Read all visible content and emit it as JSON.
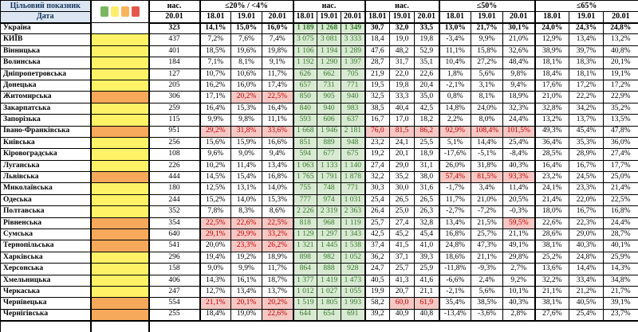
{
  "header": {
    "target_label": "Цільовий показник",
    "date_label": "Дата",
    "legend_colors": [
      "#7ab661",
      "#fdee6c",
      "#f7b45c",
      "#e4574f"
    ],
    "legend_names": [
      "green-status",
      "yellow-status",
      "orange-status",
      "red-status"
    ],
    "groups": [
      {
        "label": "нас.",
        "dates": [
          "20.01"
        ]
      },
      {
        "label": "≤20% / <4%",
        "dates": [
          "18.01",
          "19.01",
          "20.01"
        ]
      },
      {
        "label": "нас.",
        "dates": [
          "18.01",
          "19.01",
          "20.01"
        ]
      },
      {
        "label": "нас.",
        "dates": [
          "18.01",
          "19.01",
          "20.01"
        ]
      },
      {
        "label": "≤50%",
        "dates": [
          "18.01",
          "19.01",
          "20.01"
        ]
      },
      {
        "label": "≤65%",
        "dates": [
          "18.01",
          "19.01",
          "20.01"
        ]
      }
    ]
  },
  "colors": {
    "header_blue": "#dce6f2",
    "header_text": "#17365d",
    "green_cell_bg": "#d9ead3",
    "green_cell_text": "#357a2b",
    "red_cell_bg": "#f6c7c3",
    "red_cell_text": "#c00000",
    "indicator_yellow": "#fff266",
    "indicator_orange": "#f6a95b"
  },
  "rows": [
    {
      "name": "Україна",
      "bold": true,
      "ind": "n",
      "nas": "323",
      "p20": [
        "14,1%",
        "15,0%",
        "16,0%"
      ],
      "p20r": [
        0,
        0,
        0
      ],
      "n1": [
        "1 189",
        "1 268",
        "1 349"
      ],
      "n2": [
        "30,7",
        "32,0",
        "33,5"
      ],
      "n2r": [
        0,
        0,
        0
      ],
      "p50": [
        "13,0%",
        "21,7%",
        "30,1%"
      ],
      "p50r": [
        0,
        0,
        0
      ],
      "p65": [
        "24,0%",
        "24,3%",
        "24,8%"
      ]
    },
    {
      "name": "КИЇВ",
      "bold": false,
      "ind": "y",
      "nas": "437",
      "p20": [
        "7,2%",
        "7,6%",
        "7,4%"
      ],
      "p20r": [
        0,
        0,
        0
      ],
      "n1": [
        "3 075",
        "3 081",
        "3 333"
      ],
      "n2": [
        "18,4",
        "19,0",
        "19,8"
      ],
      "n2r": [
        0,
        0,
        0
      ],
      "p50": [
        "-3,4%",
        "9,9%",
        "21,0%"
      ],
      "p50r": [
        0,
        0,
        0
      ],
      "p65": [
        "12,9%",
        "13,4%",
        "13,2%"
      ]
    },
    {
      "name": "Вінницька",
      "bold": false,
      "ind": "y",
      "nas": "401",
      "p20": [
        "18,5%",
        "19,6%",
        "19,8%"
      ],
      "p20r": [
        0,
        0,
        0
      ],
      "n1": [
        "1 106",
        "1 194",
        "1 289"
      ],
      "n2": [
        "47,6",
        "48,2",
        "52,9"
      ],
      "n2r": [
        0,
        0,
        0
      ],
      "p50": [
        "11,1%",
        "15,8%",
        "32,6%"
      ],
      "p50r": [
        0,
        0,
        0
      ],
      "p65": [
        "38,9%",
        "39,7%",
        "40,8%"
      ]
    },
    {
      "name": "Волинська",
      "bold": false,
      "ind": "y",
      "nas": "184",
      "p20": [
        "7,1%",
        "8,1%",
        "9,1%"
      ],
      "p20r": [
        0,
        0,
        0
      ],
      "n1": [
        "1 192",
        "1 290",
        "1 397"
      ],
      "n2": [
        "28,7",
        "31,7",
        "35,1"
      ],
      "n2r": [
        0,
        0,
        0
      ],
      "p50": [
        "10,4%",
        "27,2%",
        "48,4%"
      ],
      "p50r": [
        0,
        0,
        0
      ],
      "p65": [
        "18,1%",
        "18,3%",
        "20,1%"
      ]
    },
    {
      "name": "Дніпропетровська",
      "bold": false,
      "ind": "y",
      "nas": "127",
      "p20": [
        "10,7%",
        "10,6%",
        "11,7%"
      ],
      "p20r": [
        0,
        0,
        0
      ],
      "n1": [
        "626",
        "662",
        "705"
      ],
      "n2": [
        "21,9",
        "22,0",
        "22,6"
      ],
      "n2r": [
        0,
        0,
        0
      ],
      "p50": [
        "1,8%",
        "5,6%",
        "9,8%"
      ],
      "p50r": [
        0,
        0,
        0
      ],
      "p65": [
        "18,4%",
        "18,1%",
        "19,1%"
      ]
    },
    {
      "name": "Донецька",
      "bold": false,
      "ind": "y",
      "nas": "205",
      "p20": [
        "16,2%",
        "16,0%",
        "17,4%"
      ],
      "p20r": [
        0,
        0,
        0
      ],
      "n1": [
        "657",
        "731",
        "771"
      ],
      "n2": [
        "19,5",
        "19,8",
        "20,4"
      ],
      "n2r": [
        0,
        0,
        0
      ],
      "p50": [
        "-2,1%",
        "3,1%",
        "9,4%"
      ],
      "p50r": [
        0,
        0,
        0
      ],
      "p65": [
        "17,6%",
        "17,2%",
        "17,2%"
      ]
    },
    {
      "name": "Житомирська",
      "bold": false,
      "ind": "o",
      "nas": "306",
      "p20": [
        "17,1%",
        "20,2%",
        "22,5%"
      ],
      "p20r": [
        0,
        1,
        1
      ],
      "n1": [
        "850",
        "905",
        "940"
      ],
      "n2": [
        "32,5",
        "33,3",
        "35,0"
      ],
      "n2r": [
        0,
        0,
        0
      ],
      "p50": [
        "0,8%",
        "8,1%",
        "18,9%"
      ],
      "p50r": [
        0,
        0,
        0
      ],
      "p65": [
        "21,0%",
        "22,2%",
        "22,9%"
      ]
    },
    {
      "name": "Закарпатська",
      "bold": false,
      "ind": "y",
      "nas": "259",
      "p20": [
        "16,4%",
        "15,3%",
        "16,4%"
      ],
      "p20r": [
        0,
        0,
        0
      ],
      "n1": [
        "840",
        "940",
        "983"
      ],
      "n2": [
        "38,5",
        "40,4",
        "42,5"
      ],
      "n2r": [
        0,
        0,
        0
      ],
      "p50": [
        "14,8%",
        "24,0%",
        "32,3%"
      ],
      "p50r": [
        0,
        0,
        0
      ],
      "p65": [
        "32,8%",
        "34,2%",
        "35,2%"
      ]
    },
    {
      "name": "Запорізька",
      "bold": false,
      "ind": "y",
      "nas": "115",
      "p20": [
        "9,9%",
        "9,8%",
        "11,1%"
      ],
      "p20r": [
        0,
        0,
        0
      ],
      "n1": [
        "593",
        "606",
        "637"
      ],
      "n2": [
        "16,7",
        "17,0",
        "18,2"
      ],
      "n2r": [
        0,
        0,
        0
      ],
      "p50": [
        "2,2%",
        "8,0%",
        "24,4%"
      ],
      "p50r": [
        0,
        0,
        0
      ],
      "p65": [
        "13,2%",
        "13,7%",
        "13,5%"
      ]
    },
    {
      "name": "Івано-Франківська",
      "bold": false,
      "ind": "o",
      "nas": "951",
      "p20": [
        "29,2%",
        "31,8%",
        "33,6%"
      ],
      "p20r": [
        1,
        1,
        1
      ],
      "n1": [
        "1 668",
        "1 946",
        "2 181"
      ],
      "n2": [
        "76,0",
        "81,5",
        "86,2"
      ],
      "n2r": [
        1,
        1,
        1
      ],
      "p50": [
        "92,9%",
        "108,4%",
        "101,5%"
      ],
      "p50r": [
        1,
        1,
        1
      ],
      "p65": [
        "49,3%",
        "45,4%",
        "47,8%"
      ]
    },
    {
      "name": "Київська",
      "bold": false,
      "ind": "y",
      "nas": "256",
      "p20": [
        "15,6%",
        "15,9%",
        "16,6%"
      ],
      "p20r": [
        0,
        0,
        0
      ],
      "n1": [
        "851",
        "889",
        "948"
      ],
      "n2": [
        "23,2",
        "24,1",
        "25,5"
      ],
      "n2r": [
        0,
        0,
        0
      ],
      "p50": [
        "5,1%",
        "14,4%",
        "25,4%"
      ],
      "p50r": [
        0,
        0,
        0
      ],
      "p65": [
        "36,4%",
        "35,3%",
        "36,0%"
      ]
    },
    {
      "name": "Кіровоградська",
      "bold": false,
      "ind": "y",
      "nas": "108",
      "p20": [
        "9,6%",
        "9,0%",
        "9,4%"
      ],
      "p20r": [
        0,
        0,
        0
      ],
      "n1": [
        "594",
        "677",
        "675"
      ],
      "n2": [
        "19,2",
        "20,1",
        "18,9"
      ],
      "n2r": [
        0,
        0,
        0
      ],
      "p50": [
        "-17,6%",
        "-5,1%",
        "-8,4%"
      ],
      "p50r": [
        0,
        0,
        0
      ],
      "p65": [
        "28,5%",
        "28,9%",
        "27,4%"
      ]
    },
    {
      "name": "Луганська",
      "bold": false,
      "ind": "y",
      "nas": "226",
      "p20": [
        "10,2%",
        "11,4%",
        "13,4%"
      ],
      "p20r": [
        0,
        0,
        0
      ],
      "n1": [
        "1 063",
        "1 133",
        "1 140"
      ],
      "n2": [
        "27,4",
        "29,0",
        "31,1"
      ],
      "n2r": [
        0,
        0,
        0
      ],
      "p50": [
        "26,0%",
        "31,8%",
        "40,3%"
      ],
      "p50r": [
        0,
        0,
        0
      ],
      "p65": [
        "16,4%",
        "16,7%",
        "17,7%"
      ]
    },
    {
      "name": "Львівська",
      "bold": false,
      "ind": "o",
      "nas": "444",
      "p20": [
        "14,5%",
        "15,4%",
        "16,8%"
      ],
      "p20r": [
        0,
        0,
        0
      ],
      "n1": [
        "1 765",
        "1 791",
        "1 878"
      ],
      "n2": [
        "32,2",
        "35,2",
        "38,0"
      ],
      "n2r": [
        0,
        0,
        0
      ],
      "p50": [
        "57,4%",
        "81,5%",
        "93,3%"
      ],
      "p50r": [
        1,
        1,
        1
      ],
      "p65": [
        "23,2%",
        "24,5%",
        "25,0%"
      ]
    },
    {
      "name": "Миколаївська",
      "bold": false,
      "ind": "y",
      "nas": "180",
      "p20": [
        "12,5%",
        "13,1%",
        "14,0%"
      ],
      "p20r": [
        0,
        0,
        0
      ],
      "n1": [
        "755",
        "748",
        "771"
      ],
      "n2": [
        "30,3",
        "30,0",
        "31,6"
      ],
      "n2r": [
        0,
        0,
        0
      ],
      "p50": [
        "-1,7%",
        "3,4%",
        "11,4%"
      ],
      "p50r": [
        0,
        0,
        0
      ],
      "p65": [
        "24,1%",
        "23,3%",
        "21,4%"
      ]
    },
    {
      "name": "Одеська",
      "bold": false,
      "ind": "y",
      "nas": "244",
      "p20": [
        "15,2%",
        "14,0%",
        "15,3%"
      ],
      "p20r": [
        0,
        0,
        0
      ],
      "n1": [
        "777",
        "974",
        "1 031"
      ],
      "n2": [
        "25,4",
        "26,5",
        "26,5"
      ],
      "n2r": [
        0,
        0,
        0
      ],
      "p50": [
        "11,7%",
        "21,0%",
        "20,5%"
      ],
      "p50r": [
        0,
        0,
        0
      ],
      "p65": [
        "21,4%",
        "22,0%",
        "22,5%"
      ]
    },
    {
      "name": "Полтавська",
      "bold": false,
      "ind": "y",
      "nas": "352",
      "p20": [
        "7,8%",
        "8,3%",
        "8,6%"
      ],
      "p20r": [
        0,
        0,
        0
      ],
      "n1": [
        "2 226",
        "2 319",
        "2 363"
      ],
      "n2": [
        "26,4",
        "25,0",
        "26,3"
      ],
      "n2r": [
        0,
        0,
        0
      ],
      "p50": [
        "-2,7%",
        "-7,2%",
        "-0,3%"
      ],
      "p50r": [
        0,
        0,
        0
      ],
      "p65": [
        "18,0%",
        "16,7%",
        "16,8%"
      ]
    },
    {
      "name": "Рівненська",
      "bold": false,
      "ind": "o",
      "nas": "354",
      "p20": [
        "22,5%",
        "22,6%",
        "22,5%"
      ],
      "p20r": [
        1,
        1,
        1
      ],
      "n1": [
        "818",
        "968",
        "1 119"
      ],
      "n2": [
        "25,7",
        "27,4",
        "32,8"
      ],
      "n2r": [
        0,
        0,
        0
      ],
      "p50": [
        "13,4%",
        "21,5%",
        "59,5%"
      ],
      "p50r": [
        0,
        0,
        1
      ],
      "p65": [
        "22,6%",
        "22,3%",
        "24,4%"
      ]
    },
    {
      "name": "Сумська",
      "bold": false,
      "ind": "o",
      "nas": "640",
      "p20": [
        "29,1%",
        "29,9%",
        "33,2%"
      ],
      "p20r": [
        1,
        1,
        1
      ],
      "n1": [
        "1 129",
        "1 297",
        "1 343"
      ],
      "n2": [
        "42,5",
        "45,2",
        "45,4"
      ],
      "n2r": [
        0,
        0,
        0
      ],
      "p50": [
        "16,8%",
        "25,7%",
        "21,1%"
      ],
      "p50r": [
        0,
        0,
        0
      ],
      "p65": [
        "28,6%",
        "29,0%",
        "28,7%"
      ]
    },
    {
      "name": "Тернопільська",
      "bold": false,
      "ind": "o",
      "nas": "541",
      "p20": [
        "20,0%",
        "23,3%",
        "26,2%"
      ],
      "p20r": [
        0,
        1,
        1
      ],
      "n1": [
        "1 321",
        "1 445",
        "1 538"
      ],
      "n2": [
        "37,4",
        "41,5",
        "41,0"
      ],
      "n2r": [
        0,
        0,
        0
      ],
      "p50": [
        "24,8%",
        "47,3%",
        "49,1%"
      ],
      "p50r": [
        0,
        0,
        0
      ],
      "p65": [
        "38,1%",
        "40,3%",
        "40,1%"
      ]
    },
    {
      "name": "Харківська",
      "bold": false,
      "ind": "y",
      "nas": "296",
      "p20": [
        "19,4%",
        "19,2%",
        "18,9%"
      ],
      "p20r": [
        0,
        0,
        0
      ],
      "n1": [
        "898",
        "982",
        "1 052"
      ],
      "n2": [
        "36,2",
        "37,1",
        "39,3"
      ],
      "n2r": [
        0,
        0,
        0
      ],
      "p50": [
        "18,6%",
        "21,1%",
        "29,8%"
      ],
      "p50r": [
        0,
        0,
        0
      ],
      "p65": [
        "25,2%",
        "24,8%",
        "25,9%"
      ]
    },
    {
      "name": "Херсонська",
      "bold": false,
      "ind": "y",
      "nas": "158",
      "p20": [
        "9,0%",
        "9,9%",
        "11,7%"
      ],
      "p20r": [
        0,
        0,
        0
      ],
      "n1": [
        "864",
        "888",
        "928"
      ],
      "n2": [
        "24,7",
        "25,7",
        "25,9"
      ],
      "n2r": [
        0,
        0,
        0
      ],
      "p50": [
        "-11,8%",
        "-9,3%",
        "2,7%"
      ],
      "p50r": [
        0,
        0,
        0
      ],
      "p65": [
        "13,6%",
        "14,4%",
        "14,3%"
      ]
    },
    {
      "name": "Хмельницька",
      "bold": false,
      "ind": "y",
      "nas": "406",
      "p20": [
        "14,3%",
        "16,1%",
        "18,7%"
      ],
      "p20r": [
        0,
        0,
        0
      ],
      "n1": [
        "1 377",
        "1 419",
        "1 473"
      ],
      "n2": [
        "40,5",
        "41,3",
        "41,6"
      ],
      "n2r": [
        0,
        0,
        0
      ],
      "p50": [
        "-6,6%",
        "2,4%",
        "9,2%"
      ],
      "p50r": [
        0,
        0,
        0
      ],
      "p65": [
        "32,2%",
        "33,4%",
        "34,8%"
      ]
    },
    {
      "name": "Черкаська",
      "bold": false,
      "ind": "y",
      "nas": "247",
      "p20": [
        "12,7%",
        "13,4%",
        "13,7%"
      ],
      "p20r": [
        0,
        0,
        0
      ],
      "n1": [
        "1 012",
        "1 027",
        "1 055"
      ],
      "n2": [
        "19,9",
        "20,7",
        "21,1"
      ],
      "n2r": [
        0,
        0,
        0
      ],
      "p50": [
        "-2,1%",
        "5,6%",
        "10,1%"
      ],
      "p50r": [
        0,
        0,
        0
      ],
      "p65": [
        "21,1%",
        "21,2%",
        "21,7%"
      ]
    },
    {
      "name": "Чернівецька",
      "bold": false,
      "ind": "o",
      "nas": "554",
      "p20": [
        "21,1%",
        "20,1%",
        "20,2%"
      ],
      "p20r": [
        1,
        1,
        1
      ],
      "n1": [
        "1 519",
        "1 805",
        "1 993"
      ],
      "n2": [
        "58,2",
        "60,0",
        "61,9"
      ],
      "n2r": [
        0,
        1,
        1
      ],
      "p50": [
        "35,4%",
        "38,5%",
        "40,3%"
      ],
      "p50r": [
        0,
        0,
        0
      ],
      "p65": [
        "38,1%",
        "40,5%",
        "39,1%"
      ]
    },
    {
      "name": "Чернігівська",
      "bold": false,
      "ind": "o",
      "nas": "255",
      "p20": [
        "18,4%",
        "19,0%",
        "22,6%"
      ],
      "p20r": [
        0,
        0,
        1
      ],
      "n1": [
        "644",
        "654",
        "691"
      ],
      "n2": [
        "39,2",
        "40,9",
        "40,8"
      ],
      "n2r": [
        0,
        0,
        0
      ],
      "p50": [
        "-13,4%",
        "-3,6%",
        "2,8%"
      ],
      "p50r": [
        0,
        0,
        0
      ],
      "p65": [
        "27,6%",
        "25,4%",
        "23,7%"
      ]
    }
  ],
  "partial_row": {
    "present": true,
    "note": "bottom row clipped by screenshot edge"
  }
}
